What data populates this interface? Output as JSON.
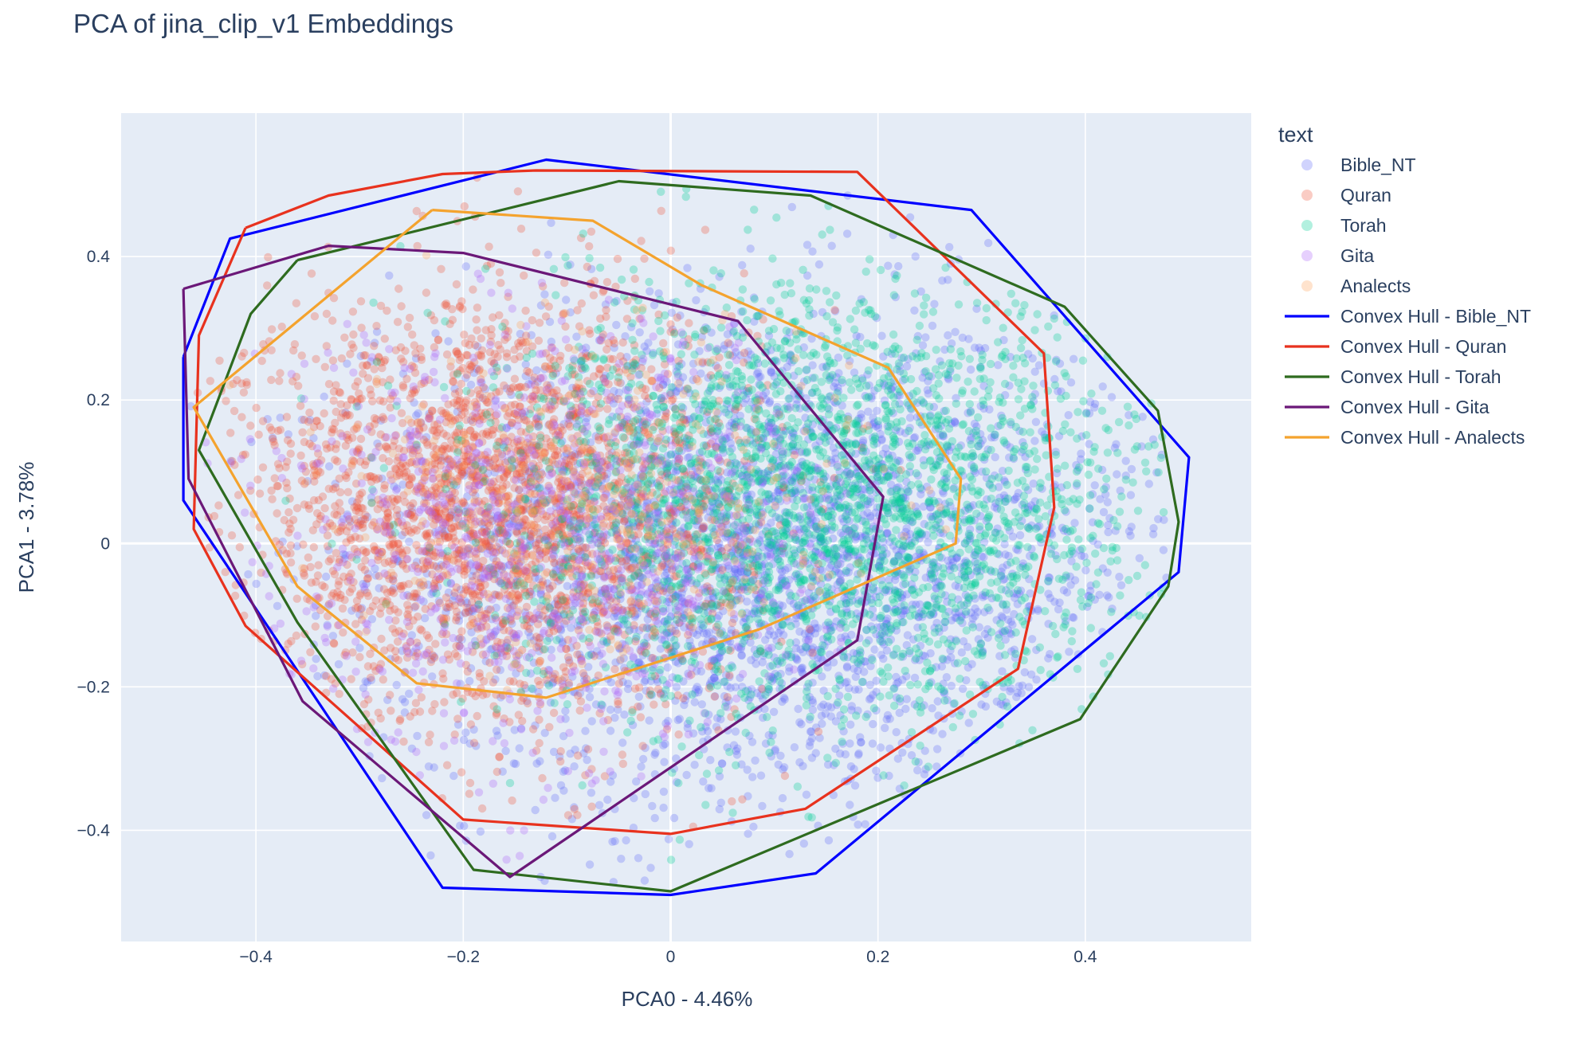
{
  "chart_data": {
    "type": "scatter",
    "title": "PCA of jina_clip_v1 Embeddings",
    "xlabel": "PCA0 - 4.46%",
    "ylabel": "PCA1 - 3.78%",
    "xlim": [
      -0.53,
      0.56
    ],
    "ylim": [
      -0.555,
      0.6
    ],
    "xticks": [
      -0.4,
      -0.2,
      0,
      0.2,
      0.4
    ],
    "xtick_labels": [
      "−0.4",
      "−0.2",
      "0",
      "0.2",
      "0.4"
    ],
    "yticks": [
      -0.4,
      -0.2,
      0,
      0.2,
      0.4
    ],
    "ytick_labels": [
      "−0.4",
      "−0.2",
      "0",
      "0.2",
      "0.4"
    ],
    "grid": true,
    "legend_title": "text",
    "legend_position": "right",
    "colors": {
      "plot_bg": "#e5ecf6",
      "grid": "#ffffff",
      "text": "#2a3f5f"
    },
    "series": [
      {
        "name": "Bible_NT",
        "kind": "scatter",
        "color": "#636efa",
        "approx_points": 3000,
        "center": [
          0.1,
          -0.02
        ],
        "spread": [
          0.19,
          0.17
        ]
      },
      {
        "name": "Quran",
        "kind": "scatter",
        "color": "#ef553b",
        "approx_points": 2600,
        "center": [
          -0.17,
          0.05
        ],
        "spread": [
          0.12,
          0.15
        ]
      },
      {
        "name": "Torah",
        "kind": "scatter",
        "color": "#00cc96",
        "approx_points": 2600,
        "center": [
          0.15,
          0.05
        ],
        "spread": [
          0.16,
          0.15
        ]
      },
      {
        "name": "Gita",
        "kind": "scatter",
        "color": "#ab63fa",
        "approx_points": 900,
        "center": [
          -0.1,
          0.02
        ],
        "spread": [
          0.14,
          0.15
        ]
      },
      {
        "name": "Analects",
        "kind": "scatter",
        "color": "#ffa15a",
        "approx_points": 400,
        "center": [
          -0.05,
          0.05
        ],
        "spread": [
          0.12,
          0.12
        ]
      },
      {
        "name": "Convex Hull - Bible_NT",
        "kind": "line",
        "color": "#0000ff",
        "points": [
          [
            -0.47,
            0.26
          ],
          [
            -0.425,
            0.425
          ],
          [
            -0.12,
            0.535
          ],
          [
            0.29,
            0.465
          ],
          [
            0.5,
            0.12
          ],
          [
            0.49,
            -0.04
          ],
          [
            0.14,
            -0.46
          ],
          [
            0.0,
            -0.49
          ],
          [
            -0.22,
            -0.48
          ],
          [
            -0.47,
            0.06
          ],
          [
            -0.47,
            0.26
          ]
        ]
      },
      {
        "name": "Convex Hull - Quran",
        "kind": "line",
        "color": "#e8321e",
        "points": [
          [
            -0.41,
            0.44
          ],
          [
            -0.33,
            0.485
          ],
          [
            -0.22,
            0.515
          ],
          [
            -0.13,
            0.52
          ],
          [
            0.18,
            0.518
          ],
          [
            0.36,
            0.265
          ],
          [
            0.37,
            0.05
          ],
          [
            0.335,
            -0.175
          ],
          [
            0.13,
            -0.37
          ],
          [
            0.0,
            -0.405
          ],
          [
            -0.2,
            -0.385
          ],
          [
            -0.41,
            -0.115
          ],
          [
            -0.46,
            0.02
          ],
          [
            -0.455,
            0.29
          ],
          [
            -0.41,
            0.44
          ]
        ]
      },
      {
        "name": "Convex Hull - Torah",
        "kind": "line",
        "color": "#2e6b1f",
        "points": [
          [
            -0.36,
            0.395
          ],
          [
            -0.05,
            0.505
          ],
          [
            0.135,
            0.485
          ],
          [
            0.38,
            0.33
          ],
          [
            0.47,
            0.185
          ],
          [
            0.49,
            0.03
          ],
          [
            0.48,
            -0.06
          ],
          [
            0.395,
            -0.245
          ],
          [
            0.0,
            -0.485
          ],
          [
            -0.19,
            -0.455
          ],
          [
            -0.36,
            -0.11
          ],
          [
            -0.455,
            0.13
          ],
          [
            -0.405,
            0.32
          ],
          [
            -0.36,
            0.395
          ]
        ]
      },
      {
        "name": "Convex Hull - Gita",
        "kind": "line",
        "color": "#6b1878",
        "points": [
          [
            -0.47,
            0.355
          ],
          [
            -0.33,
            0.415
          ],
          [
            -0.2,
            0.405
          ],
          [
            0.065,
            0.31
          ],
          [
            0.205,
            0.065
          ],
          [
            0.18,
            -0.135
          ],
          [
            -0.155,
            -0.465
          ],
          [
            -0.355,
            -0.22
          ],
          [
            -0.465,
            0.09
          ],
          [
            -0.47,
            0.355
          ]
        ]
      },
      {
        "name": "Convex Hull - Analects",
        "kind": "line",
        "color": "#f4a32e",
        "points": [
          [
            -0.23,
            0.465
          ],
          [
            -0.075,
            0.45
          ],
          [
            0.03,
            0.36
          ],
          [
            0.21,
            0.245
          ],
          [
            0.28,
            0.09
          ],
          [
            0.275,
            0.0
          ],
          [
            0.085,
            -0.12
          ],
          [
            -0.12,
            -0.215
          ],
          [
            -0.245,
            -0.195
          ],
          [
            -0.36,
            -0.06
          ],
          [
            -0.46,
            0.19
          ],
          [
            -0.23,
            0.465
          ]
        ]
      }
    ]
  }
}
